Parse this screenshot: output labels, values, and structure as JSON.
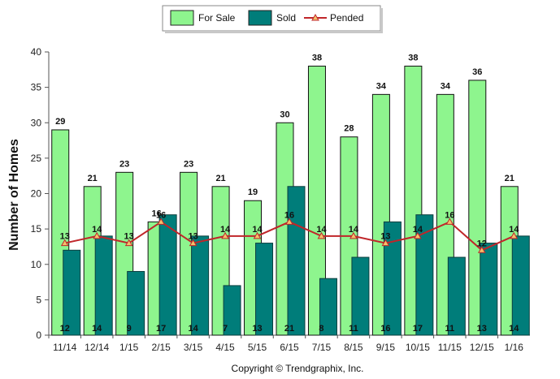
{
  "chart_data": {
    "type": "bar",
    "title": "",
    "xlabel": "",
    "ylabel": "Number of Homes",
    "ylim": [
      0,
      40
    ],
    "yticks": [
      "0",
      "5",
      "10",
      "15",
      "20",
      "25",
      "30",
      "35",
      "40"
    ],
    "categories": [
      "11/14",
      "12/14",
      "1/15",
      "2/15",
      "3/15",
      "4/15",
      "5/15",
      "6/15",
      "7/15",
      "8/15",
      "9/15",
      "10/15",
      "11/15",
      "12/15",
      "1/16"
    ],
    "series": [
      {
        "name": "For Sale",
        "kind": "bar",
        "color": "#8ef58e",
        "values": [
          29,
          21,
          23,
          16,
          23,
          21,
          19,
          30,
          38,
          28,
          34,
          38,
          34,
          36,
          21
        ]
      },
      {
        "name": "Sold",
        "kind": "bar",
        "color": "#007d7a",
        "values": [
          12,
          14,
          9,
          17,
          14,
          7,
          13,
          21,
          8,
          11,
          16,
          17,
          11,
          13,
          14
        ]
      },
      {
        "name": "Pended",
        "kind": "line",
        "color": "#c0262a",
        "values": [
          13,
          14,
          13,
          16,
          13,
          14,
          14,
          16,
          14,
          14,
          13,
          14,
          16,
          12,
          14
        ]
      }
    ],
    "legend_position": "top",
    "grid": false
  },
  "footer": {
    "copyright": "Copyright © Trendgraphix, Inc."
  }
}
